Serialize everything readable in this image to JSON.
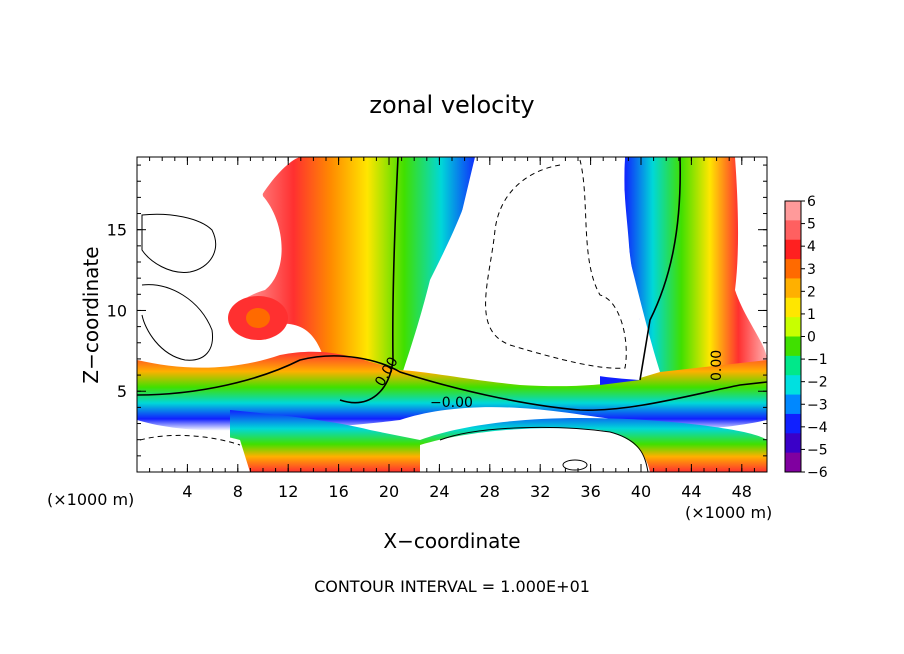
{
  "chart_data": {
    "type": "contour",
    "title": "zonal velocity",
    "xlabel": "X−coordinate",
    "ylabel": "Z−coordinate",
    "x_unit_left": "(×1000 m)",
    "x_unit_right": "(×1000 m)",
    "xlim": [
      0,
      50
    ],
    "ylim": [
      0,
      19.5
    ],
    "x_ticks": [
      "4",
      "8",
      "12",
      "16",
      "20",
      "24",
      "28",
      "32",
      "36",
      "40",
      "44",
      "48"
    ],
    "y_ticks": [
      "5",
      "10",
      "15"
    ],
    "colorbar": {
      "labels": [
        "6",
        "5",
        "4",
        "3",
        "2",
        "1",
        "0",
        "−1",
        "−2",
        "−3",
        "−4",
        "−5",
        "−6"
      ],
      "values": [
        6,
        5,
        4,
        3,
        2,
        1,
        0,
        -1,
        -2,
        -3,
        -4,
        -5,
        -6
      ],
      "colors": [
        "#ff9a9a",
        "#ff6060",
        "#ff2020",
        "#ff6a00",
        "#ffb000",
        "#ffe600",
        "#c8ff00",
        "#40e000",
        "#00e88a",
        "#00e0e0",
        "#0088ff",
        "#1020ff",
        "#3a00c8",
        "#8000a0"
      ]
    },
    "contour_labels": [
      "0.00",
      "−0.00",
      "0.00"
    ],
    "footer": "CONTOUR INTERVAL = 1.000E+01"
  }
}
